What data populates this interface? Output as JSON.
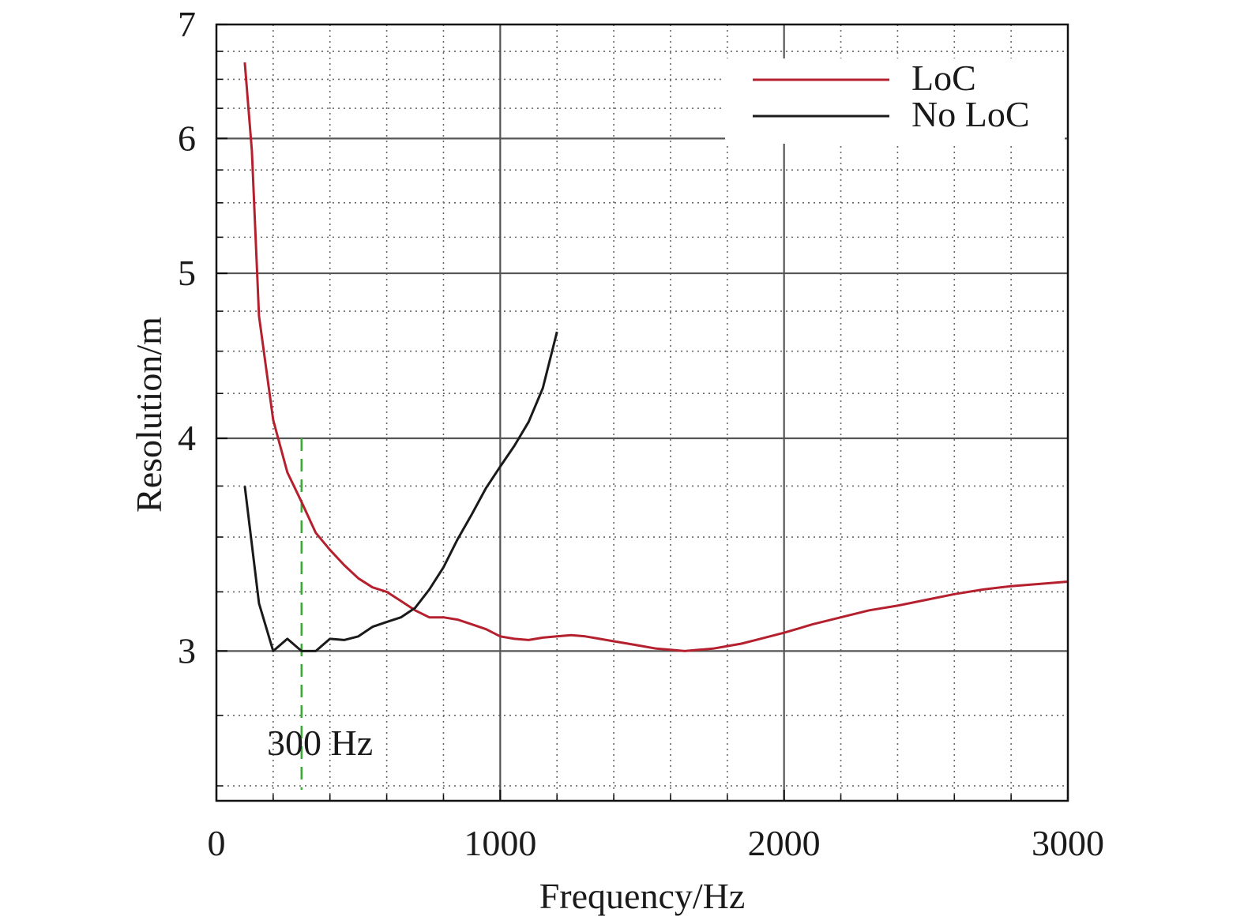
{
  "chart_data": {
    "type": "line",
    "title": "",
    "xlabel": "Frequency/Hz",
    "ylabel": "Resolution/m",
    "xlim": [
      0,
      3000
    ],
    "ylim": [
      2.45,
      7
    ],
    "y_scale": "log",
    "x_ticks": [
      0,
      1000,
      2000,
      3000
    ],
    "x_tick_labels": [
      "0",
      "1000",
      "2000",
      "3000"
    ],
    "y_ticks": [
      3,
      4,
      5,
      6,
      7
    ],
    "y_tick_labels": [
      "3",
      "4",
      "5",
      "6",
      "7"
    ],
    "grid": true,
    "legend_position": "top-right",
    "series": [
      {
        "name": "LoC",
        "color": "#b5202e",
        "x": [
          100,
          125,
          150,
          200,
          250,
          300,
          350,
          400,
          450,
          500,
          550,
          600,
          650,
          700,
          750,
          800,
          850,
          900,
          950,
          1000,
          1050,
          1100,
          1150,
          1200,
          1250,
          1300,
          1350,
          1400,
          1450,
          1500,
          1550,
          1600,
          1650,
          1700,
          1750,
          1800,
          1850,
          1900,
          1950,
          2000,
          2100,
          2200,
          2300,
          2400,
          2500,
          2600,
          2700,
          2800,
          2900,
          3000
        ],
        "values": [
          6.65,
          5.9,
          4.72,
          4.1,
          3.82,
          3.67,
          3.52,
          3.44,
          3.37,
          3.31,
          3.27,
          3.25,
          3.21,
          3.17,
          3.14,
          3.14,
          3.13,
          3.11,
          3.09,
          3.06,
          3.05,
          3.045,
          3.055,
          3.06,
          3.065,
          3.06,
          3.05,
          3.04,
          3.03,
          3.02,
          3.01,
          3.005,
          3.0,
          3.005,
          3.01,
          3.02,
          3.03,
          3.045,
          3.06,
          3.075,
          3.11,
          3.14,
          3.17,
          3.19,
          3.215,
          3.24,
          3.26,
          3.275,
          3.285,
          3.295
        ]
      },
      {
        "name": "No LoC",
        "color": "#1a1a1a",
        "x": [
          100,
          150,
          200,
          250,
          300,
          350,
          400,
          450,
          500,
          550,
          600,
          650,
          700,
          750,
          800,
          850,
          900,
          950,
          1000,
          1050,
          1100,
          1150,
          1200
        ],
        "values": [
          3.75,
          3.2,
          3.0,
          3.05,
          3.0,
          3.0,
          3.05,
          3.045,
          3.06,
          3.1,
          3.12,
          3.14,
          3.18,
          3.26,
          3.36,
          3.49,
          3.61,
          3.74,
          3.85,
          3.96,
          4.09,
          4.28,
          4.62
        ]
      }
    ],
    "annotations": [
      {
        "type": "vline",
        "x": 300,
        "label": "300 Hz",
        "color": "#3aaa35",
        "style": "dashed"
      }
    ]
  }
}
